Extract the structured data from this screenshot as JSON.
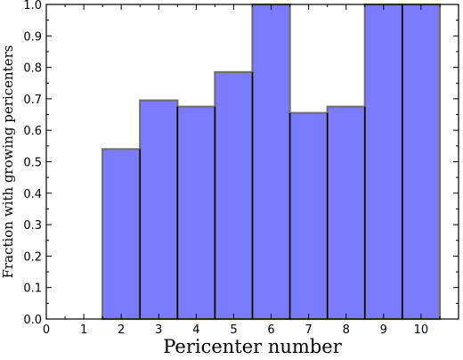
{
  "chart_data": {
    "type": "bar",
    "title": "",
    "xlabel": "Pericenter number",
    "ylabel": "Fraction with growing pericenters",
    "categories": [
      "0",
      "1",
      "2",
      "3",
      "4",
      "5",
      "6",
      "7",
      "8",
      "9",
      "10"
    ],
    "values": [
      0.0,
      0.0,
      0.54,
      0.695,
      0.675,
      0.785,
      1.0,
      0.655,
      0.675,
      1.0,
      1.0
    ],
    "xlim": [
      0,
      11
    ],
    "ylim": [
      0,
      1.0
    ],
    "xticks": [
      "0",
      "1",
      "2",
      "3",
      "4",
      "5",
      "6",
      "7",
      "8",
      "9",
      "10"
    ],
    "yticks": [
      "0.0",
      "0.1",
      "0.2",
      "0.3",
      "0.4",
      "0.5",
      "0.6",
      "0.7",
      "0.8",
      "0.9",
      "1.0"
    ],
    "bar_color": "#7b7bff",
    "edge_color": "#707070",
    "divider_color": "#000000",
    "grid": false,
    "legend": false
  }
}
